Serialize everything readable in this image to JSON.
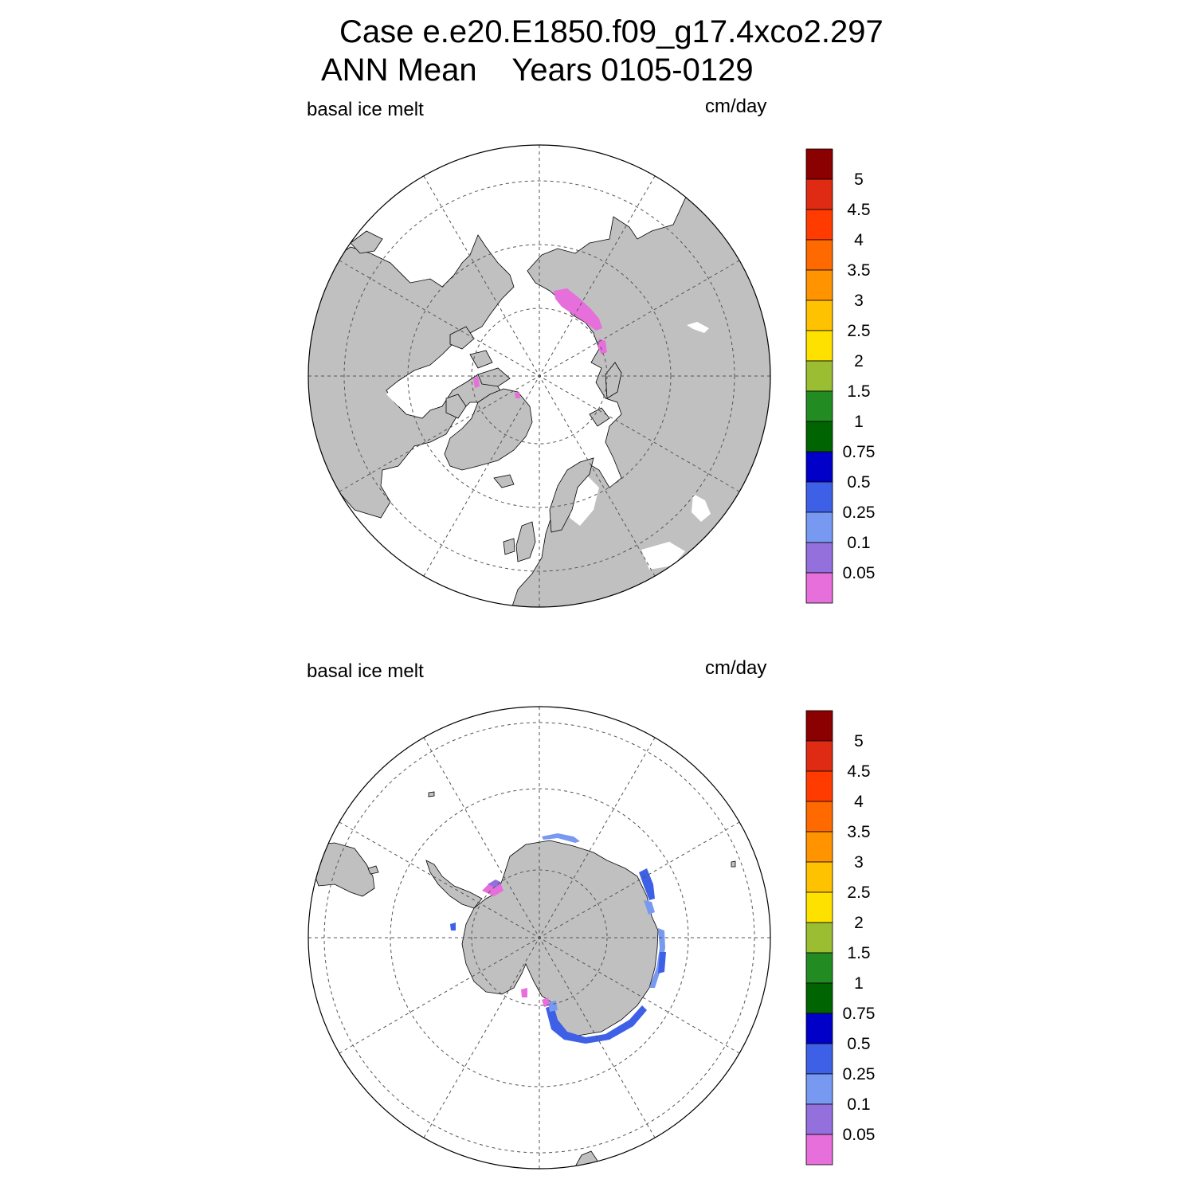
{
  "title": {
    "line1": "Case e.e20.E1850.f09_g17.4xco2.297",
    "line2": "ANN Mean    Years 0105-0129"
  },
  "panels": [
    {
      "id": "north",
      "left_label": "basal ice melt",
      "units": "cm/day",
      "hemisphere": "north"
    },
    {
      "id": "south",
      "left_label": "basal ice melt",
      "units": "cm/day",
      "hemisphere": "south"
    }
  ],
  "colorbar": {
    "levels": [
      "0.05",
      "0.1",
      "0.25",
      "0.5",
      "0.75",
      "1",
      "1.5",
      "2",
      "2.5",
      "3",
      "3.5",
      "4",
      "4.5",
      "5"
    ],
    "colors": [
      "#E66FDB",
      "#9370DB",
      "#7799F2",
      "#3D60E6",
      "#0000C8",
      "#006400",
      "#228B22",
      "#9ABD32",
      "#FFE100",
      "#FFC200",
      "#FF9400",
      "#FF6A00",
      "#FF3B00",
      "#DF2A14",
      "#8B0000"
    ]
  },
  "map_style": {
    "land_color": "#C0C0C0",
    "ocean_color": "#FFFFFF",
    "grid_style": "dashed"
  }
}
